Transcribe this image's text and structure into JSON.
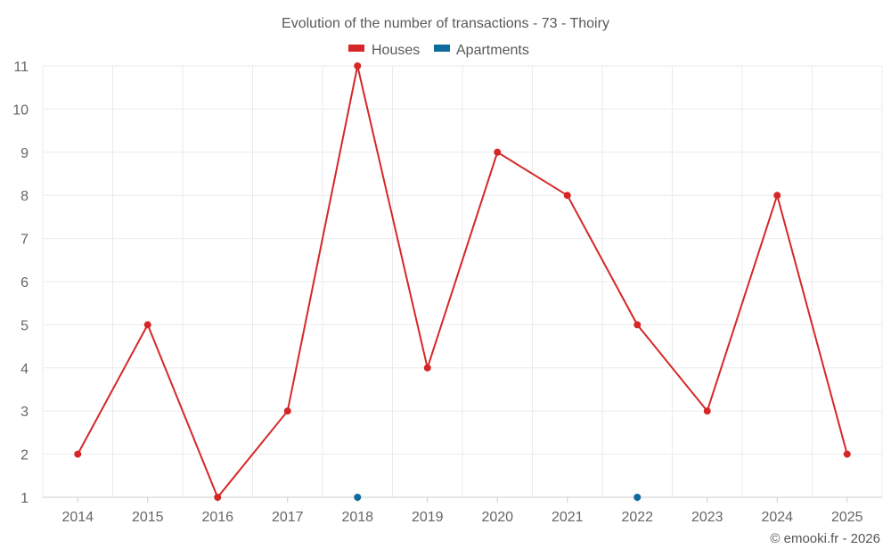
{
  "chart_data": {
    "type": "line",
    "title": "Evolution of the number of transactions - 73 - Thoiry",
    "categories": [
      "2014",
      "2015",
      "2016",
      "2017",
      "2018",
      "2019",
      "2020",
      "2021",
      "2022",
      "2023",
      "2024",
      "2025"
    ],
    "ylim": [
      1,
      11
    ],
    "yticks": [
      "1",
      "2",
      "3",
      "4",
      "5",
      "6",
      "7",
      "8",
      "9",
      "10",
      "11"
    ],
    "grid": true,
    "legend_position": "top-center",
    "series": [
      {
        "name": "Houses",
        "color": "#d62728",
        "values": [
          2,
          5,
          1,
          3,
          11,
          4,
          9,
          8,
          5,
          3,
          8,
          2
        ]
      },
      {
        "name": "Apartments",
        "color": "#0f6a9e",
        "values": [
          null,
          null,
          null,
          null,
          1,
          null,
          null,
          null,
          1,
          null,
          null,
          null
        ]
      }
    ],
    "credit": "© emooki.fr - 2026"
  }
}
